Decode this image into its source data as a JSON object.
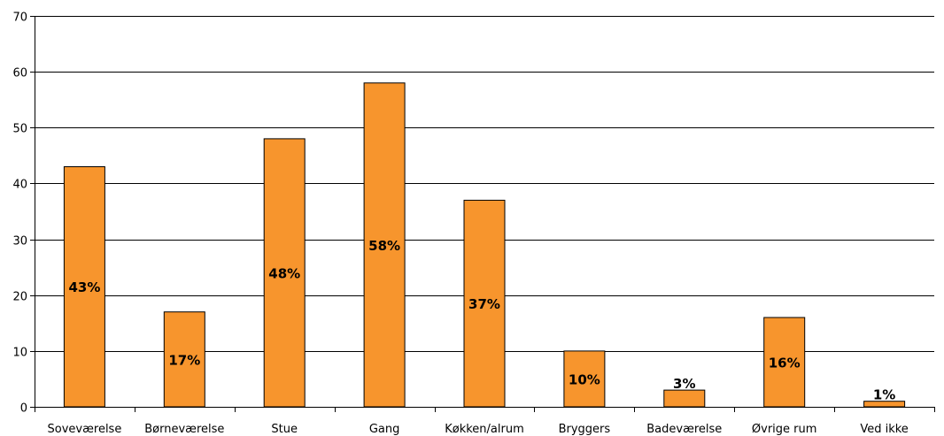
{
  "chart_data": {
    "type": "bar",
    "categories": [
      "Soveværelse",
      "Børneværelse",
      "Stue",
      "Gang",
      "Køkken/alrum",
      "Bryggers",
      "Badeværelse",
      "Øvrige rum",
      "Ved ikke"
    ],
    "values": [
      43,
      17,
      48,
      58,
      37,
      10,
      3,
      16,
      1
    ],
    "data_labels": [
      "43%",
      "17%",
      "48%",
      "58%",
      "37%",
      "10%",
      "3%",
      "16%",
      "1%"
    ],
    "ylim": [
      0,
      70
    ],
    "yticks": [
      0,
      10,
      20,
      30,
      40,
      50,
      60,
      70
    ],
    "ytick_labels": [
      "0",
      "10",
      "20",
      "30",
      "40",
      "50",
      "60",
      "70"
    ],
    "grid": true,
    "legend": false,
    "bar_color": "#f7952d",
    "bar_stroke": "#000000",
    "grid_color": "#000000"
  }
}
